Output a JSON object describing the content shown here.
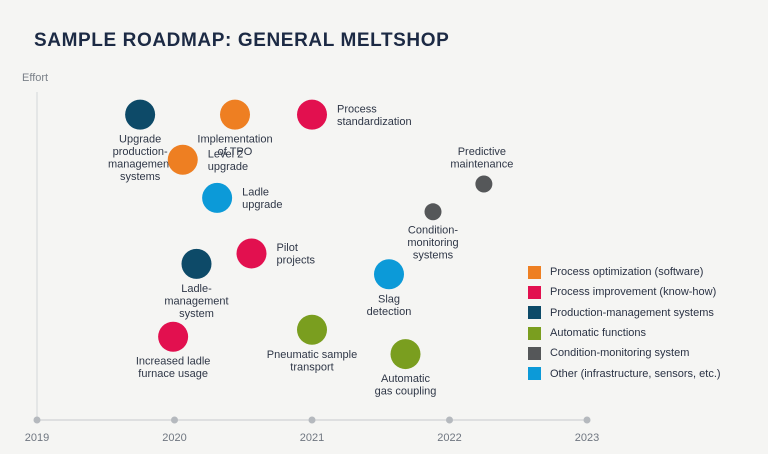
{
  "chart_data": {
    "type": "scatter",
    "title": "SAMPLE ROADMAP: GENERAL MELTSHOP",
    "xlabel": "",
    "ylabel": "Effort",
    "xlim": [
      2019,
      2023
    ],
    "x_ticks": [
      "2019",
      "2020",
      "2021",
      "2022",
      "2023"
    ],
    "categories": [
      {
        "id": "opt",
        "name": "Process optimization (software)",
        "color": "#ee7f22"
      },
      {
        "id": "imp",
        "name": "Process improvement (know-how)",
        "color": "#e2104f"
      },
      {
        "id": "pms",
        "name": "Production-management systems",
        "color": "#0d4a68"
      },
      {
        "id": "auto",
        "name": "Automatic functions",
        "color": "#7a9e1f"
      },
      {
        "id": "cms",
        "name": "Condition-monitoring system",
        "color": "#555759"
      },
      {
        "id": "other",
        "name": "Other (infrastructure, sensors, etc.)",
        "color": "#0c9ad8"
      }
    ],
    "points": [
      {
        "label": [
          "Upgrade",
          "production-",
          "management",
          "systems"
        ],
        "category": "pms",
        "x": 2019.75,
        "y": 88,
        "size": "large"
      },
      {
        "label": [
          "Implementation",
          "of TPO"
        ],
        "category": "opt",
        "x": 2020.44,
        "y": 88,
        "size": "large"
      },
      {
        "label": [
          "Process",
          "standardization"
        ],
        "category": "imp",
        "x": 2021.0,
        "y": 88,
        "size": "large"
      },
      {
        "label": [
          "Level 2",
          "upgrade"
        ],
        "category": "opt",
        "x": 2020.06,
        "y": 75,
        "size": "large"
      },
      {
        "label": [
          "Ladle",
          "upgrade"
        ],
        "category": "other",
        "x": 2020.31,
        "y": 64,
        "size": "large"
      },
      {
        "label": [
          "Predictive",
          "maintenance"
        ],
        "category": "cms",
        "x": 2022.25,
        "y": 68,
        "size": "small"
      },
      {
        "label": [
          "Condition-",
          "monitoring",
          "systems"
        ],
        "category": "cms",
        "x": 2021.88,
        "y": 60,
        "size": "small"
      },
      {
        "label": [
          "Pilot",
          "projects"
        ],
        "category": "imp",
        "x": 2020.56,
        "y": 48,
        "size": "large"
      },
      {
        "label": [
          "Ladle-",
          "management",
          "system"
        ],
        "category": "pms",
        "x": 2020.16,
        "y": 45,
        "size": "large"
      },
      {
        "label": [
          "Slag",
          "detection"
        ],
        "category": "other",
        "x": 2021.56,
        "y": 42,
        "size": "large"
      },
      {
        "label": [
          "Increased ladle",
          "furnace usage"
        ],
        "category": "imp",
        "x": 2019.99,
        "y": 24,
        "size": "large"
      },
      {
        "label": [
          "Pneumatic sample",
          "transport"
        ],
        "category": "auto",
        "x": 2021.0,
        "y": 26,
        "size": "large"
      },
      {
        "label": [
          "Automatic",
          "gas coupling"
        ],
        "category": "auto",
        "x": 2021.68,
        "y": 19,
        "size": "large"
      }
    ],
    "grid": false,
    "legend": "right"
  }
}
